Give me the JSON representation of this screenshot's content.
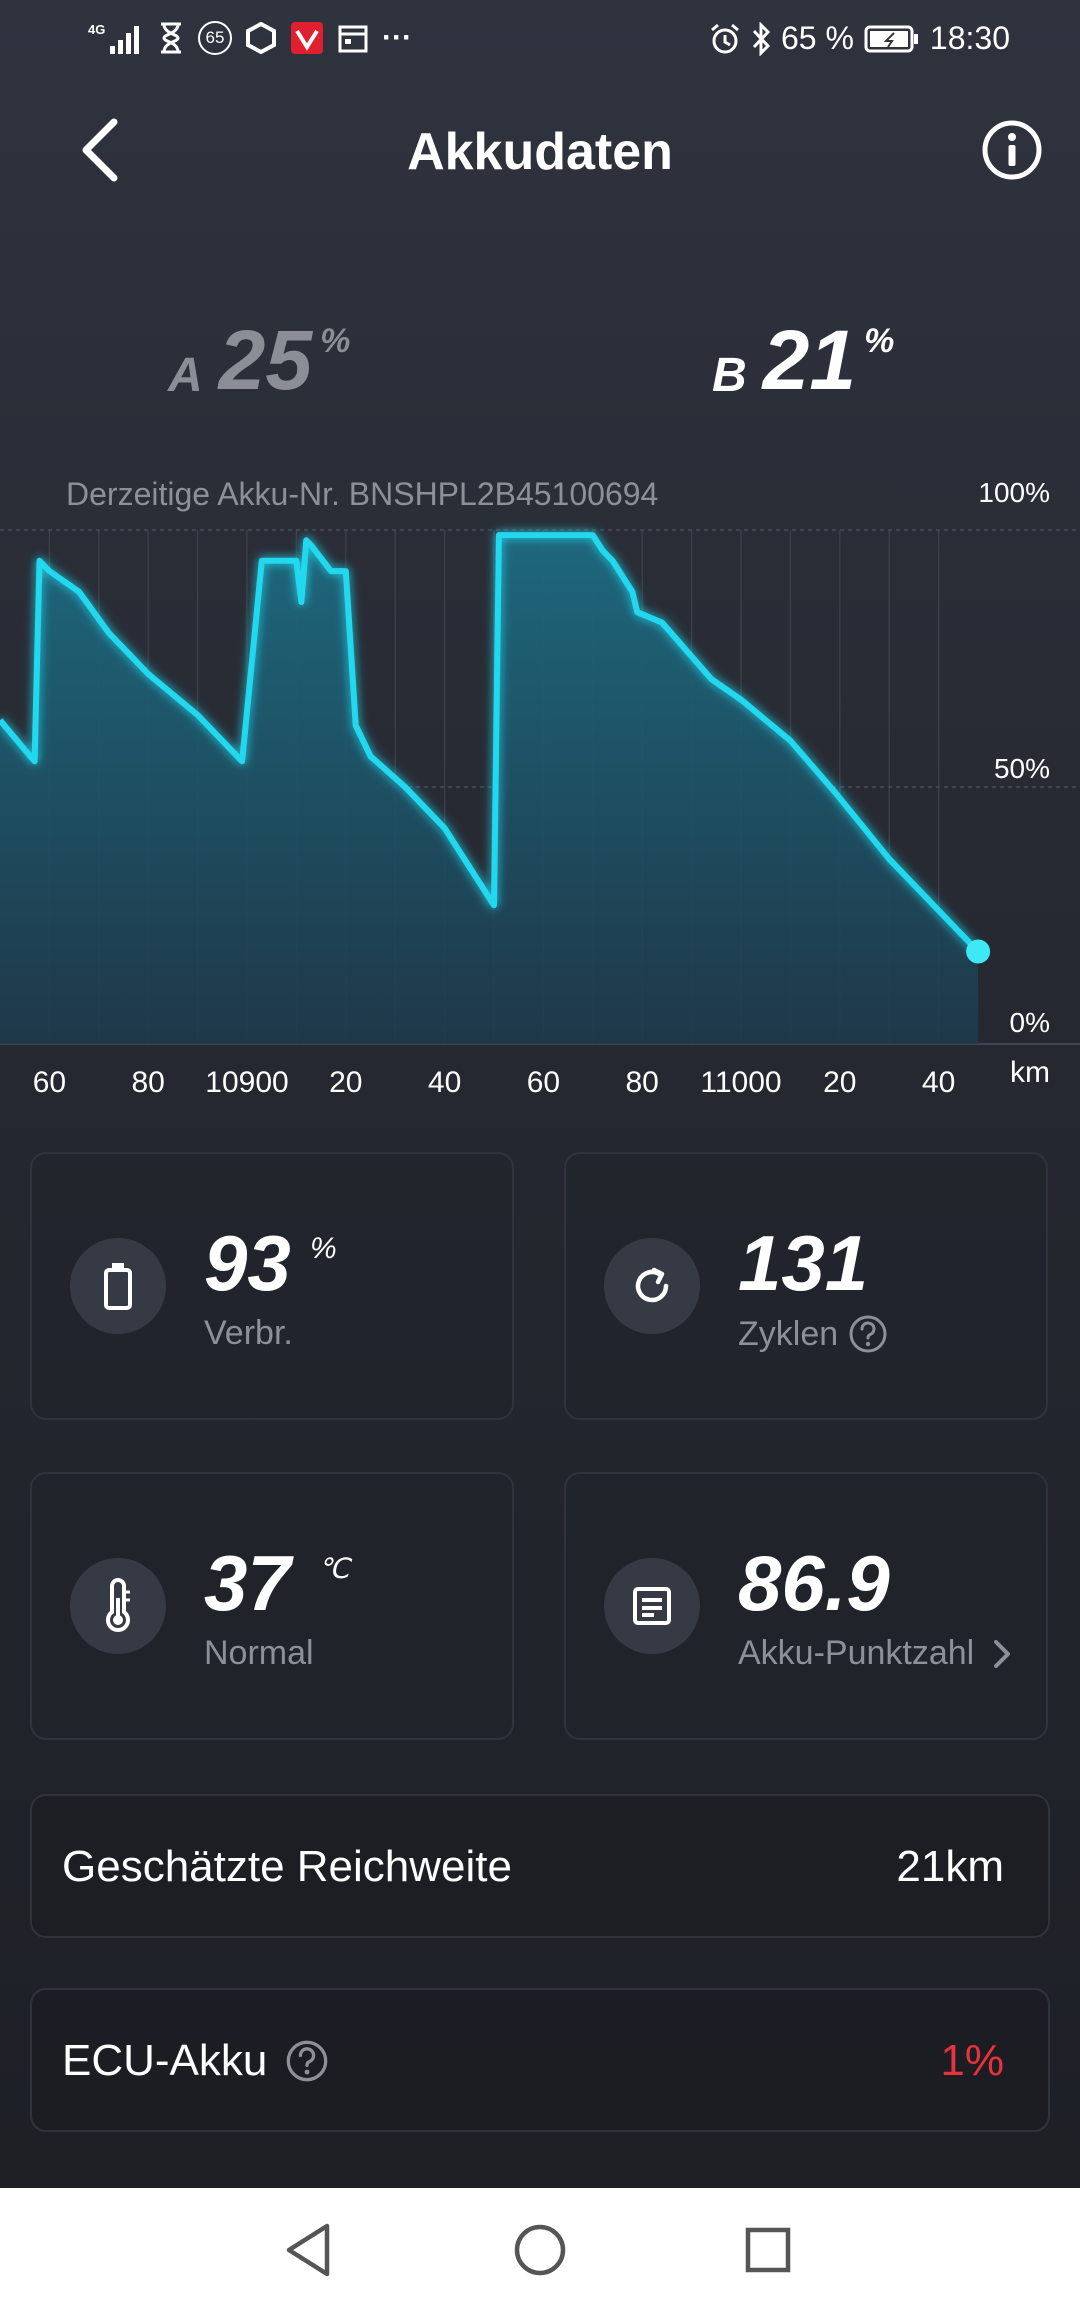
{
  "status_bar": {
    "network": "4G",
    "notif_badge": "65",
    "more": "···",
    "battery_percent": "65 %",
    "time": "18:30"
  },
  "header": {
    "title": "Akkudaten"
  },
  "akkus": {
    "a": {
      "letter": "A",
      "value": "25",
      "unit": "%"
    },
    "b": {
      "letter": "B",
      "value": "21",
      "unit": "%"
    }
  },
  "serial_label": "Derzeitige Akku-Nr. BNSHPL2B45100694",
  "chart_data": {
    "type": "area",
    "y_ticks": [
      "100%",
      "50%",
      "0%"
    ],
    "ylim": [
      0,
      100
    ],
    "x_ticks": [
      "60",
      "80",
      "10900",
      "20",
      "40",
      "60",
      "80",
      "11000",
      "20",
      "40"
    ],
    "x_unit": "km",
    "xlim": [
      10850,
      11050
    ],
    "x": [
      10850,
      10857,
      10858,
      10860,
      10866,
      10872,
      10880,
      10890,
      10899,
      10903,
      10910,
      10911,
      10912,
      10913,
      10917,
      10920,
      10922,
      10925,
      10932,
      10940,
      10946,
      10950,
      10951,
      10953,
      10960,
      10970,
      10972,
      10974,
      10978,
      10979,
      10984,
      10994,
      11000,
      11010,
      11019,
      11030,
      11040,
      11046,
      11048
    ],
    "values": [
      63,
      55,
      94,
      92,
      88,
      80,
      72,
      64,
      55,
      94,
      94,
      86,
      98,
      97,
      92,
      92,
      62,
      56,
      50,
      42,
      33,
      27,
      99,
      99,
      99,
      99,
      96,
      94,
      88,
      84,
      82,
      71,
      67,
      59,
      49,
      36,
      26,
      20,
      18
    ],
    "grid": true
  },
  "cards": {
    "consumption": {
      "value": "93",
      "unit": "%",
      "label": "Verbr.",
      "icon": "battery-icon"
    },
    "cycles": {
      "value": "131",
      "label": "Zyklen",
      "icon": "refresh-icon"
    },
    "temperature": {
      "value": "37",
      "unit": "℃",
      "label": "Normal",
      "icon": "thermometer-icon"
    },
    "score": {
      "value": "86.9",
      "label": "Akku-Punktzahl",
      "icon": "document-icon"
    }
  },
  "range": {
    "label": "Geschätzte Reichweite",
    "value": "21km"
  },
  "ecu": {
    "label": "ECU-Akku",
    "value": "1%",
    "value_color": "#e8323c"
  },
  "colors": {
    "accent": "#22d8ef",
    "background": "#2a2d36"
  }
}
